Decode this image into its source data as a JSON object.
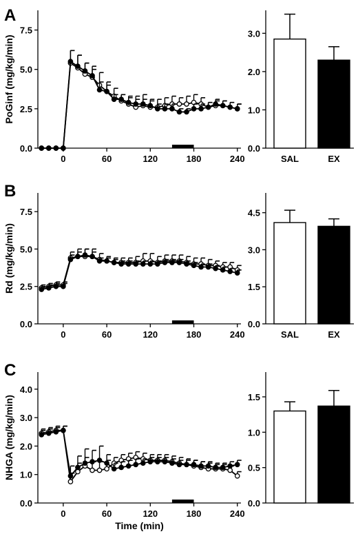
{
  "chart_data": [
    {
      "id": "A",
      "type": "line",
      "panel_label": "A",
      "ylabel": "PoGinf (mg/kg/min)",
      "xlabel": "",
      "xlim": [
        -35,
        245
      ],
      "ylim": [
        0,
        8.75
      ],
      "xticks": [
        "0",
        "60",
        "120",
        "180",
        "240"
      ],
      "yticks": [
        "0.0",
        "2.5",
        "5.0",
        "7.5"
      ],
      "clamp_bar": [
        150,
        180
      ],
      "series": [
        {
          "fill": "white",
          "x": [
            -30,
            -20,
            -10,
            0,
            10,
            20,
            30,
            40,
            50,
            60,
            70,
            80,
            90,
            100,
            110,
            120,
            130,
            140,
            150,
            160,
            170,
            180,
            190,
            200,
            210,
            220,
            230,
            240
          ],
          "y": [
            0,
            0,
            0,
            0,
            5.4,
            5.1,
            4.7,
            4.5,
            4.0,
            3.6,
            3.3,
            3.0,
            2.8,
            2.6,
            2.7,
            2.6,
            2.6,
            2.7,
            2.8,
            2.8,
            2.8,
            2.9,
            2.8,
            2.6,
            2.7,
            2.7,
            2.6,
            2.5
          ],
          "err": [
            0,
            0,
            0,
            0,
            0.8,
            0.8,
            0.7,
            0.7,
            0.8,
            0.6,
            0.5,
            0.4,
            0.4,
            0.7,
            0.7,
            0.5,
            0.5,
            0.5,
            0.5,
            0.4,
            0.5,
            0.5,
            0.4,
            0.3,
            0.3,
            0.3,
            0.3,
            0.3
          ]
        },
        {
          "fill": "black",
          "x": [
            -30,
            -20,
            -10,
            0,
            10,
            20,
            30,
            40,
            50,
            60,
            70,
            80,
            90,
            100,
            110,
            120,
            130,
            140,
            150,
            160,
            170,
            180,
            190,
            200,
            210,
            220,
            230,
            240
          ],
          "y": [
            0,
            0,
            0,
            0,
            5.5,
            5.2,
            4.9,
            4.6,
            3.7,
            3.6,
            3.1,
            3.1,
            2.9,
            2.8,
            2.8,
            2.7,
            2.5,
            2.5,
            2.5,
            2.3,
            2.3,
            2.5,
            2.5,
            2.6,
            2.8,
            2.7,
            2.6,
            2.5
          ],
          "err": [
            0,
            0,
            0,
            0,
            0.7,
            0.7,
            0.5,
            0.4,
            0.5,
            0.4,
            0.3,
            0.3,
            0.4,
            0.3,
            0.3,
            0.3,
            0.3,
            0.3,
            0.3,
            0.2,
            0.2,
            0.3,
            0.3,
            0.3,
            0.3,
            0.3,
            0.3,
            0.3
          ]
        }
      ],
      "bar": {
        "type": "bar",
        "categories": [
          "SAL",
          "EX"
        ],
        "values": [
          2.85,
          2.3
        ],
        "err": [
          0.65,
          0.35
        ],
        "fills": [
          "white",
          "black"
        ],
        "ylim": [
          0,
          3.6
        ],
        "yticks": [
          "0.0",
          "1.0",
          "2.0",
          "3.0"
        ]
      }
    },
    {
      "id": "B",
      "type": "line",
      "panel_label": "B",
      "ylabel": "Rd (mg/kg/min)",
      "xlabel": "",
      "xlim": [
        -35,
        245
      ],
      "ylim": [
        0,
        8.75
      ],
      "xticks": [
        "0",
        "60",
        "120",
        "180",
        "240"
      ],
      "yticks": [
        "0.0",
        "2.5",
        "5.0",
        "7.5"
      ],
      "clamp_bar": [
        150,
        180
      ],
      "series": [
        {
          "fill": "white",
          "x": [
            -30,
            -20,
            -10,
            0,
            10,
            20,
            30,
            40,
            50,
            60,
            70,
            80,
            90,
            100,
            110,
            120,
            130,
            140,
            150,
            160,
            170,
            180,
            190,
            200,
            210,
            220,
            230,
            240
          ],
          "y": [
            2.4,
            2.5,
            2.6,
            2.6,
            4.4,
            4.5,
            4.5,
            4.5,
            4.3,
            4.2,
            4.1,
            4.1,
            4.1,
            4.1,
            4.2,
            4.2,
            4.1,
            4.2,
            4.2,
            4.2,
            4.1,
            4.0,
            4.0,
            3.9,
            3.9,
            3.8,
            3.8,
            3.6
          ],
          "err": [
            0.2,
            0.2,
            0.2,
            0.2,
            0.4,
            0.5,
            0.5,
            0.5,
            0.4,
            0.3,
            0.3,
            0.3,
            0.3,
            0.4,
            0.5,
            0.5,
            0.4,
            0.4,
            0.4,
            0.4,
            0.4,
            0.4,
            0.4,
            0.4,
            0.3,
            0.3,
            0.3,
            0.3
          ]
        },
        {
          "fill": "black",
          "x": [
            -30,
            -20,
            -10,
            0,
            10,
            20,
            30,
            40,
            50,
            60,
            70,
            80,
            90,
            100,
            110,
            120,
            130,
            140,
            150,
            160,
            170,
            180,
            190,
            200,
            210,
            220,
            230,
            240
          ],
          "y": [
            2.3,
            2.4,
            2.5,
            2.5,
            4.3,
            4.5,
            4.6,
            4.5,
            4.2,
            4.2,
            4.1,
            4.0,
            4.0,
            4.0,
            4.0,
            4.0,
            4.0,
            4.1,
            4.1,
            4.1,
            4.0,
            3.9,
            3.8,
            3.8,
            3.7,
            3.6,
            3.5,
            3.4
          ],
          "err": [
            0.2,
            0.2,
            0.2,
            0.2,
            0.3,
            0.3,
            0.4,
            0.3,
            0.2,
            0.2,
            0.2,
            0.2,
            0.2,
            0.2,
            0.2,
            0.2,
            0.2,
            0.2,
            0.2,
            0.2,
            0.2,
            0.2,
            0.2,
            0.2,
            0.2,
            0.2,
            0.2,
            0.2
          ]
        }
      ],
      "bar": {
        "type": "bar",
        "categories": [
          "SAL",
          "EX"
        ],
        "values": [
          4.1,
          3.95
        ],
        "err": [
          0.5,
          0.3
        ],
        "fills": [
          "white",
          "black"
        ],
        "ylim": [
          0,
          5.3
        ],
        "yticks": [
          "0.0",
          "1.5",
          "3.0",
          "4.5"
        ]
      }
    },
    {
      "id": "C",
      "type": "line",
      "panel_label": "C",
      "ylabel": "NHGA (mg/kg/min)",
      "xlabel": "Time (min)",
      "xlim": [
        -35,
        245
      ],
      "ylim": [
        0,
        4.6
      ],
      "xticks": [
        "0",
        "60",
        "120",
        "180",
        "240"
      ],
      "yticks": [
        "0.0",
        "1.0",
        "2.0",
        "3.0",
        "4.0"
      ],
      "clamp_bar": [
        150,
        180
      ],
      "series": [
        {
          "fill": "white",
          "x": [
            -30,
            -20,
            -10,
            0,
            10,
            20,
            30,
            40,
            50,
            60,
            70,
            80,
            90,
            100,
            110,
            120,
            130,
            140,
            150,
            160,
            170,
            180,
            190,
            200,
            210,
            220,
            230,
            240
          ],
          "y": [
            2.45,
            2.5,
            2.55,
            2.55,
            0.75,
            1.1,
            1.3,
            1.15,
            1.15,
            1.2,
            1.4,
            1.5,
            1.55,
            1.6,
            1.55,
            1.5,
            1.5,
            1.5,
            1.45,
            1.4,
            1.35,
            1.3,
            1.25,
            1.2,
            1.2,
            1.2,
            1.15,
            0.95
          ],
          "err": [
            0.15,
            0.15,
            0.15,
            0.15,
            0.3,
            0.3,
            0.3,
            0.3,
            0.3,
            0.3,
            0.2,
            0.2,
            0.2,
            0.2,
            0.2,
            0.2,
            0.2,
            0.2,
            0.2,
            0.2,
            0.2,
            0.2,
            0.2,
            0.2,
            0.15,
            0.15,
            0.15,
            0.15
          ]
        },
        {
          "fill": "black",
          "x": [
            -30,
            -20,
            -10,
            0,
            10,
            20,
            30,
            40,
            50,
            60,
            70,
            80,
            90,
            100,
            110,
            120,
            130,
            140,
            150,
            160,
            170,
            180,
            190,
            200,
            210,
            220,
            230,
            240
          ],
          "y": [
            2.4,
            2.45,
            2.5,
            2.55,
            0.95,
            1.25,
            1.4,
            1.45,
            1.5,
            1.4,
            1.2,
            1.25,
            1.3,
            1.35,
            1.4,
            1.45,
            1.45,
            1.45,
            1.4,
            1.35,
            1.35,
            1.35,
            1.3,
            1.3,
            1.25,
            1.25,
            1.3,
            1.35
          ],
          "err": [
            0.15,
            0.15,
            0.15,
            0.15,
            0.35,
            0.4,
            0.5,
            0.4,
            0.5,
            0.3,
            0.2,
            0.2,
            0.2,
            0.2,
            0.15,
            0.15,
            0.15,
            0.15,
            0.15,
            0.15,
            0.15,
            0.15,
            0.15,
            0.15,
            0.15,
            0.15,
            0.15,
            0.15
          ]
        }
      ],
      "bar": {
        "type": "bar",
        "categories": [
          "",
          ""
        ],
        "values": [
          1.3,
          1.37
        ],
        "err": [
          0.13,
          0.22
        ],
        "fills": [
          "white",
          "black"
        ],
        "ylim": [
          0,
          1.85
        ],
        "yticks": [
          "0.0",
          "0.5",
          "1.0",
          "1.5"
        ]
      }
    }
  ]
}
